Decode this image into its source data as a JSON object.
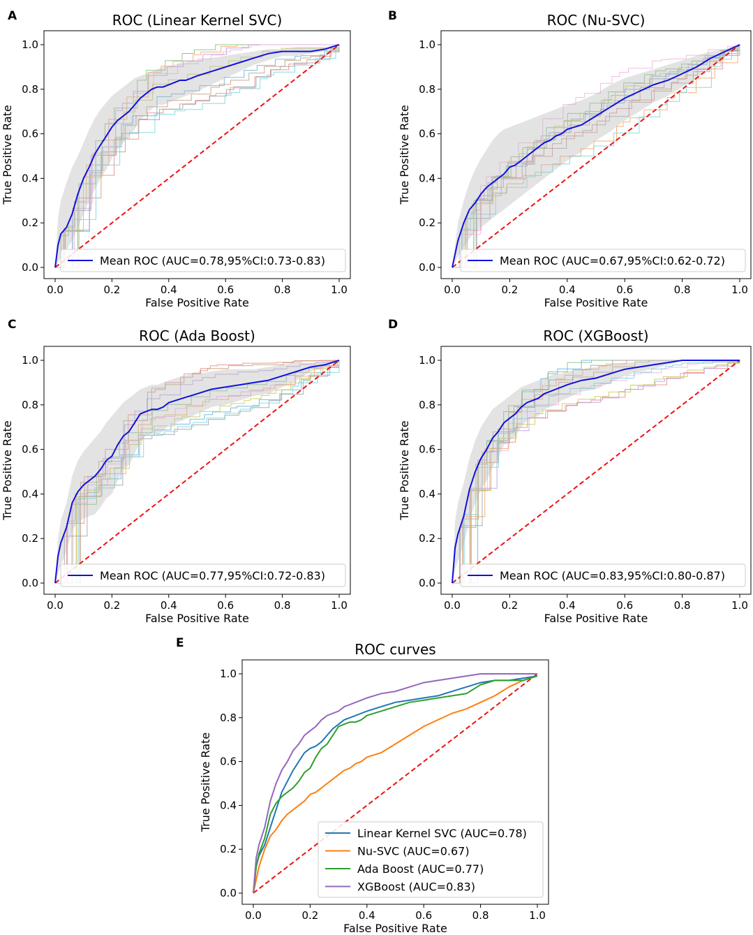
{
  "figure": {
    "colors": {
      "mean": "#1010dd",
      "chance": "#ee1111",
      "ci_band": "#b9b9b9",
      "folds": [
        "#5fb2e0",
        "#f4a460",
        "#7fbf7f",
        "#e88888",
        "#b89be0",
        "#c49a7a",
        "#f0b0e0",
        "#a0a0a0",
        "#c8c850",
        "#70d8e0"
      ],
      "model_colors": [
        "#1f77b4",
        "#ff7f0e",
        "#2ca02c",
        "#9467bd"
      ]
    }
  },
  "chart_data": [
    {
      "panel": "A",
      "type": "line",
      "title": "ROC (Linear Kernel SVC)",
      "xlabel": "False Positive Rate",
      "ylabel": "True Positive Rate",
      "xlim": [
        0,
        1
      ],
      "ylim": [
        0,
        1
      ],
      "xticks": [
        "0.0",
        "0.2",
        "0.4",
        "0.6",
        "0.8",
        "1.0"
      ],
      "yticks": [
        "0.0",
        "0.2",
        "0.4",
        "0.6",
        "0.8",
        "1.0"
      ],
      "legend": "Mean ROC (AUC=0.78,95%CI:0.73-0.83)",
      "mean_roc": {
        "x": [
          0,
          0.01,
          0.02,
          0.04,
          0.06,
          0.08,
          0.1,
          0.12,
          0.14,
          0.16,
          0.18,
          0.2,
          0.22,
          0.24,
          0.26,
          0.28,
          0.3,
          0.32,
          0.34,
          0.36,
          0.38,
          0.4,
          0.42,
          0.44,
          0.46,
          0.48,
          0.5,
          0.55,
          0.6,
          0.65,
          0.7,
          0.75,
          0.8,
          0.85,
          0.9,
          0.95,
          1.0
        ],
        "y": [
          0,
          0.1,
          0.15,
          0.18,
          0.24,
          0.33,
          0.4,
          0.45,
          0.51,
          0.55,
          0.59,
          0.63,
          0.66,
          0.68,
          0.7,
          0.73,
          0.76,
          0.78,
          0.8,
          0.81,
          0.81,
          0.82,
          0.83,
          0.84,
          0.84,
          0.85,
          0.86,
          0.88,
          0.9,
          0.92,
          0.94,
          0.96,
          0.97,
          0.97,
          0.97,
          0.98,
          1.0
        ]
      },
      "ci_upper": [
        0,
        0.22,
        0.3,
        0.38,
        0.45,
        0.5,
        0.56,
        0.62,
        0.67,
        0.71,
        0.74,
        0.77,
        0.79,
        0.81,
        0.83,
        0.85,
        0.86,
        0.87,
        0.88,
        0.89,
        0.9,
        0.9,
        0.91,
        0.92,
        0.92,
        0.93,
        0.93,
        0.94,
        0.95,
        0.96,
        0.97,
        0.98,
        0.98,
        0.99,
        0.99,
        0.99,
        1.0
      ],
      "ci_lower": [
        0,
        0.02,
        0.05,
        0.08,
        0.12,
        0.18,
        0.24,
        0.3,
        0.35,
        0.4,
        0.44,
        0.49,
        0.53,
        0.56,
        0.59,
        0.62,
        0.66,
        0.69,
        0.71,
        0.73,
        0.73,
        0.74,
        0.75,
        0.76,
        0.77,
        0.78,
        0.79,
        0.82,
        0.85,
        0.88,
        0.91,
        0.93,
        0.95,
        0.95,
        0.96,
        0.97,
        1.0
      ],
      "seed": 3
    },
    {
      "panel": "B",
      "type": "line",
      "title": "ROC (Nu-SVC)",
      "xlabel": "False Positive Rate",
      "ylabel": "True Positive Rate",
      "xlim": [
        0,
        1
      ],
      "ylim": [
        0,
        1
      ],
      "xticks": [
        "0.0",
        "0.2",
        "0.4",
        "0.6",
        "0.8",
        "1.0"
      ],
      "yticks": [
        "0.0",
        "0.2",
        "0.4",
        "0.6",
        "0.8",
        "1.0"
      ],
      "legend": "Mean ROC (AUC=0.67,95%CI:0.62-0.72)",
      "mean_roc": {
        "x": [
          0,
          0.02,
          0.04,
          0.06,
          0.08,
          0.1,
          0.12,
          0.14,
          0.16,
          0.18,
          0.2,
          0.22,
          0.24,
          0.26,
          0.28,
          0.3,
          0.32,
          0.34,
          0.36,
          0.38,
          0.4,
          0.45,
          0.5,
          0.55,
          0.6,
          0.65,
          0.7,
          0.75,
          0.8,
          0.85,
          0.9,
          0.95,
          1.0
        ],
        "y": [
          0,
          0.12,
          0.2,
          0.26,
          0.29,
          0.33,
          0.36,
          0.38,
          0.4,
          0.42,
          0.45,
          0.46,
          0.48,
          0.5,
          0.52,
          0.54,
          0.56,
          0.57,
          0.59,
          0.6,
          0.62,
          0.64,
          0.68,
          0.72,
          0.76,
          0.79,
          0.82,
          0.84,
          0.87,
          0.9,
          0.94,
          0.97,
          1.0
        ]
      },
      "ci_upper": [
        0,
        0.2,
        0.3,
        0.38,
        0.44,
        0.49,
        0.53,
        0.57,
        0.6,
        0.62,
        0.63,
        0.64,
        0.65,
        0.66,
        0.67,
        0.68,
        0.69,
        0.7,
        0.71,
        0.72,
        0.73,
        0.75,
        0.78,
        0.82,
        0.85,
        0.87,
        0.89,
        0.91,
        0.93,
        0.95,
        0.97,
        0.98,
        1.0
      ],
      "ci_lower": [
        0,
        0.05,
        0.09,
        0.13,
        0.16,
        0.18,
        0.2,
        0.22,
        0.24,
        0.26,
        0.28,
        0.3,
        0.32,
        0.34,
        0.36,
        0.38,
        0.4,
        0.42,
        0.44,
        0.46,
        0.48,
        0.52,
        0.57,
        0.61,
        0.66,
        0.7,
        0.74,
        0.77,
        0.81,
        0.85,
        0.9,
        0.95,
        1.0
      ],
      "seed": 11
    },
    {
      "panel": "C",
      "type": "line",
      "title": "ROC (Ada Boost)",
      "xlabel": "False Positive Rate",
      "ylabel": "True Positive Rate",
      "xlim": [
        0,
        1
      ],
      "ylim": [
        0,
        1
      ],
      "xticks": [
        "0.0",
        "0.2",
        "0.4",
        "0.6",
        "0.8",
        "1.0"
      ],
      "yticks": [
        "0.0",
        "0.2",
        "0.4",
        "0.6",
        "0.8",
        "1.0"
      ],
      "legend": "Mean ROC (AUC=0.77,95%CI:0.72-0.83)",
      "mean_roc": {
        "x": [
          0,
          0.01,
          0.02,
          0.04,
          0.06,
          0.08,
          0.1,
          0.12,
          0.14,
          0.16,
          0.18,
          0.2,
          0.22,
          0.24,
          0.26,
          0.28,
          0.3,
          0.32,
          0.34,
          0.36,
          0.38,
          0.4,
          0.45,
          0.5,
          0.55,
          0.6,
          0.65,
          0.7,
          0.75,
          0.8,
          0.85,
          0.9,
          0.95,
          1.0
        ],
        "y": [
          0,
          0.12,
          0.18,
          0.25,
          0.36,
          0.41,
          0.44,
          0.46,
          0.48,
          0.51,
          0.55,
          0.57,
          0.62,
          0.66,
          0.68,
          0.72,
          0.76,
          0.77,
          0.78,
          0.78,
          0.79,
          0.81,
          0.83,
          0.85,
          0.87,
          0.88,
          0.89,
          0.9,
          0.91,
          0.93,
          0.95,
          0.97,
          0.98,
          1.0
        ]
      },
      "ci_upper": [
        0,
        0.2,
        0.28,
        0.36,
        0.48,
        0.55,
        0.59,
        0.62,
        0.65,
        0.68,
        0.72,
        0.75,
        0.78,
        0.81,
        0.83,
        0.85,
        0.87,
        0.88,
        0.89,
        0.89,
        0.9,
        0.91,
        0.93,
        0.94,
        0.95,
        0.96,
        0.96,
        0.96,
        0.97,
        0.98,
        0.99,
        0.99,
        0.99,
        1.0
      ],
      "ci_lower": [
        0,
        0.04,
        0.08,
        0.14,
        0.24,
        0.27,
        0.29,
        0.3,
        0.31,
        0.34,
        0.38,
        0.4,
        0.46,
        0.51,
        0.53,
        0.58,
        0.64,
        0.66,
        0.67,
        0.67,
        0.68,
        0.71,
        0.73,
        0.76,
        0.79,
        0.8,
        0.82,
        0.84,
        0.85,
        0.88,
        0.91,
        0.95,
        0.97,
        1.0
      ],
      "seed": 23
    },
    {
      "panel": "D",
      "type": "line",
      "title": "ROC (XGBoost)",
      "xlabel": "False Positive Rate",
      "ylabel": "True Positive Rate",
      "xlim": [
        0,
        1
      ],
      "ylim": [
        0,
        1
      ],
      "xticks": [
        "0.0",
        "0.2",
        "0.4",
        "0.6",
        "0.8",
        "1.0"
      ],
      "yticks": [
        "0.0",
        "0.2",
        "0.4",
        "0.6",
        "0.8",
        "1.0"
      ],
      "legend": "Mean ROC (AUC=0.83,95%CI:0.80-0.87)",
      "mean_roc": {
        "x": [
          0,
          0.01,
          0.02,
          0.04,
          0.06,
          0.08,
          0.1,
          0.12,
          0.14,
          0.16,
          0.18,
          0.2,
          0.22,
          0.24,
          0.26,
          0.28,
          0.3,
          0.32,
          0.34,
          0.36,
          0.38,
          0.4,
          0.45,
          0.5,
          0.55,
          0.6,
          0.65,
          0.7,
          0.75,
          0.8,
          0.85,
          0.9,
          0.95,
          1.0
        ],
        "y": [
          0,
          0.16,
          0.22,
          0.3,
          0.42,
          0.5,
          0.56,
          0.6,
          0.65,
          0.68,
          0.72,
          0.74,
          0.76,
          0.79,
          0.81,
          0.82,
          0.83,
          0.85,
          0.86,
          0.87,
          0.88,
          0.89,
          0.91,
          0.92,
          0.94,
          0.96,
          0.97,
          0.98,
          0.99,
          1.0,
          1.0,
          1.0,
          1.0,
          1.0
        ]
      },
      "ci_upper": [
        0,
        0.28,
        0.36,
        0.45,
        0.56,
        0.64,
        0.7,
        0.74,
        0.78,
        0.8,
        0.82,
        0.84,
        0.86,
        0.88,
        0.89,
        0.9,
        0.91,
        0.92,
        0.93,
        0.94,
        0.94,
        0.95,
        0.96,
        0.97,
        0.98,
        0.99,
        0.99,
        1.0,
        1.0,
        1.0,
        1.0,
        1.0,
        1.0,
        1.0
      ],
      "ci_lower": [
        0,
        0.06,
        0.1,
        0.17,
        0.28,
        0.36,
        0.42,
        0.46,
        0.52,
        0.56,
        0.62,
        0.64,
        0.66,
        0.7,
        0.73,
        0.74,
        0.75,
        0.78,
        0.79,
        0.8,
        0.82,
        0.83,
        0.86,
        0.87,
        0.9,
        0.93,
        0.95,
        0.96,
        0.98,
        1.0,
        1.0,
        1.0,
        1.0,
        1.0
      ],
      "seed": 41
    },
    {
      "panel": "E",
      "type": "line",
      "title": "ROC curves",
      "xlabel": "False Positive Rate",
      "ylabel": "True Positive Rate",
      "xlim": [
        0,
        1
      ],
      "ylim": [
        0,
        1
      ],
      "xticks": [
        "0.0",
        "0.2",
        "0.4",
        "0.6",
        "0.8",
        "1.0"
      ],
      "yticks": [
        "0.0",
        "0.2",
        "0.4",
        "0.6",
        "0.8",
        "1.0"
      ],
      "series": [
        {
          "name": "Linear Kernel SVC (AUC=0.78)",
          "x": [
            0,
            0.01,
            0.02,
            0.04,
            0.06,
            0.08,
            0.1,
            0.12,
            0.14,
            0.16,
            0.18,
            0.2,
            0.22,
            0.24,
            0.26,
            0.28,
            0.3,
            0.32,
            0.34,
            0.36,
            0.38,
            0.4,
            0.45,
            0.5,
            0.55,
            0.6,
            0.65,
            0.7,
            0.75,
            0.8,
            0.85,
            0.9,
            0.95,
            1.0
          ],
          "y": [
            0,
            0.12,
            0.17,
            0.22,
            0.3,
            0.38,
            0.46,
            0.51,
            0.56,
            0.6,
            0.64,
            0.66,
            0.67,
            0.69,
            0.72,
            0.75,
            0.77,
            0.79,
            0.8,
            0.81,
            0.82,
            0.83,
            0.85,
            0.87,
            0.88,
            0.89,
            0.9,
            0.92,
            0.94,
            0.96,
            0.97,
            0.97,
            0.98,
            0.99
          ]
        },
        {
          "name": "Nu-SVC (AUC=0.67)",
          "x": [
            0,
            0.02,
            0.04,
            0.06,
            0.08,
            0.1,
            0.12,
            0.14,
            0.16,
            0.18,
            0.2,
            0.22,
            0.24,
            0.26,
            0.28,
            0.3,
            0.32,
            0.34,
            0.36,
            0.38,
            0.4,
            0.45,
            0.5,
            0.55,
            0.6,
            0.65,
            0.7,
            0.75,
            0.8,
            0.85,
            0.9,
            0.95,
            1.0
          ],
          "y": [
            0,
            0.12,
            0.2,
            0.26,
            0.29,
            0.33,
            0.36,
            0.38,
            0.4,
            0.42,
            0.45,
            0.46,
            0.48,
            0.5,
            0.52,
            0.54,
            0.56,
            0.57,
            0.59,
            0.6,
            0.62,
            0.64,
            0.68,
            0.72,
            0.76,
            0.79,
            0.82,
            0.84,
            0.87,
            0.9,
            0.94,
            0.97,
            0.99
          ]
        },
        {
          "name": "Ada Boost (AUC=0.77)",
          "x": [
            0,
            0.01,
            0.02,
            0.04,
            0.06,
            0.08,
            0.1,
            0.12,
            0.14,
            0.16,
            0.18,
            0.2,
            0.22,
            0.24,
            0.26,
            0.28,
            0.3,
            0.32,
            0.34,
            0.36,
            0.38,
            0.4,
            0.45,
            0.5,
            0.55,
            0.6,
            0.65,
            0.7,
            0.75,
            0.8,
            0.85,
            0.9,
            0.95,
            1.0
          ],
          "y": [
            0,
            0.12,
            0.18,
            0.25,
            0.36,
            0.41,
            0.44,
            0.46,
            0.48,
            0.51,
            0.55,
            0.57,
            0.62,
            0.66,
            0.68,
            0.72,
            0.76,
            0.77,
            0.78,
            0.78,
            0.79,
            0.81,
            0.83,
            0.85,
            0.87,
            0.88,
            0.89,
            0.9,
            0.91,
            0.95,
            0.97,
            0.97,
            0.97,
            0.99
          ]
        },
        {
          "name": "XGBoost (AUC=0.83)",
          "x": [
            0,
            0.01,
            0.02,
            0.04,
            0.06,
            0.08,
            0.1,
            0.12,
            0.14,
            0.16,
            0.18,
            0.2,
            0.22,
            0.24,
            0.26,
            0.28,
            0.3,
            0.32,
            0.34,
            0.36,
            0.38,
            0.4,
            0.45,
            0.5,
            0.55,
            0.6,
            0.65,
            0.7,
            0.75,
            0.8,
            0.85,
            0.9,
            0.95,
            1.0
          ],
          "y": [
            0,
            0.16,
            0.22,
            0.3,
            0.42,
            0.5,
            0.56,
            0.6,
            0.65,
            0.68,
            0.72,
            0.74,
            0.76,
            0.79,
            0.81,
            0.82,
            0.83,
            0.85,
            0.86,
            0.87,
            0.88,
            0.89,
            0.91,
            0.92,
            0.94,
            0.96,
            0.97,
            0.98,
            0.99,
            1.0,
            1.0,
            1.0,
            1.0,
            1.0
          ]
        }
      ]
    }
  ]
}
